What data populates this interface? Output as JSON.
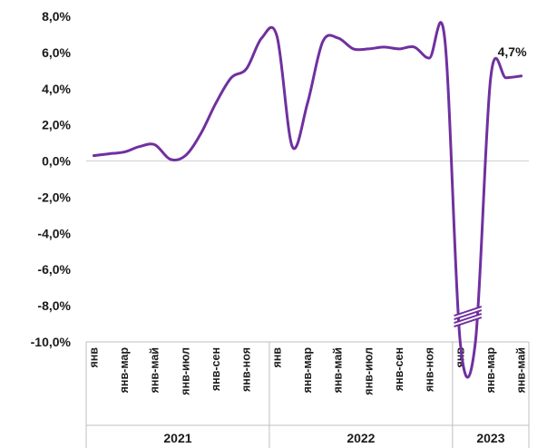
{
  "chart_data": {
    "type": "line",
    "title": "",
    "xlabel": "",
    "ylabel": "",
    "ylim": [
      -10,
      8
    ],
    "y_ticks": [
      8,
      6,
      4,
      2,
      0,
      -2,
      -4,
      -6,
      -8,
      -10
    ],
    "y_tick_labels": [
      "8,0%",
      "6,0%",
      "4,0%",
      "2,0%",
      "0,0%",
      "-2,0%",
      "-4,0%",
      "-6,0%",
      "-8,0%",
      "-10,0%"
    ],
    "x_tick_labels": [
      "янв",
      "янв-мар",
      "янв-май",
      "янв-июл",
      "янв-сен",
      "янв-ноя",
      "янв",
      "янв-мар",
      "янв-май",
      "янв-июл",
      "янв-сен",
      "янв-ноя",
      "янв",
      "янв-мар",
      "янв-май"
    ],
    "x_tick_positions": [
      0,
      2,
      4,
      6,
      8,
      10,
      12,
      14,
      16,
      18,
      20,
      22,
      24,
      26,
      28
    ],
    "years": [
      {
        "label": "2021",
        "start": -0.5,
        "end": 11.5
      },
      {
        "label": "2022",
        "start": 11.5,
        "end": 23.5
      },
      {
        "label": "2023",
        "start": 23.5,
        "end": 28.5
      }
    ],
    "axis_break": "y-axis break near -8,5%",
    "grid": false,
    "color": "#7030a0",
    "series": [
      {
        "name": "",
        "x": [
          0,
          1,
          2,
          3,
          4,
          5,
          6,
          7,
          8,
          9,
          10,
          11,
          12,
          13,
          14,
          15,
          16,
          17,
          18,
          19,
          20,
          21,
          22,
          23,
          24,
          25,
          26,
          27,
          28
        ],
        "values": [
          0.3,
          0.4,
          0.5,
          0.8,
          0.9,
          0.1,
          0.3,
          1.5,
          3.2,
          4.6,
          5.1,
          6.8,
          6.9,
          0.8,
          3.2,
          6.6,
          6.8,
          6.2,
          6.2,
          6.3,
          6.2,
          6.3,
          5.7,
          6.7,
          -10.0,
          -10.0,
          4.6,
          4.6,
          4.7
        ]
      }
    ],
    "data_labels": [
      {
        "x": 28,
        "text": "4,7%"
      }
    ]
  }
}
